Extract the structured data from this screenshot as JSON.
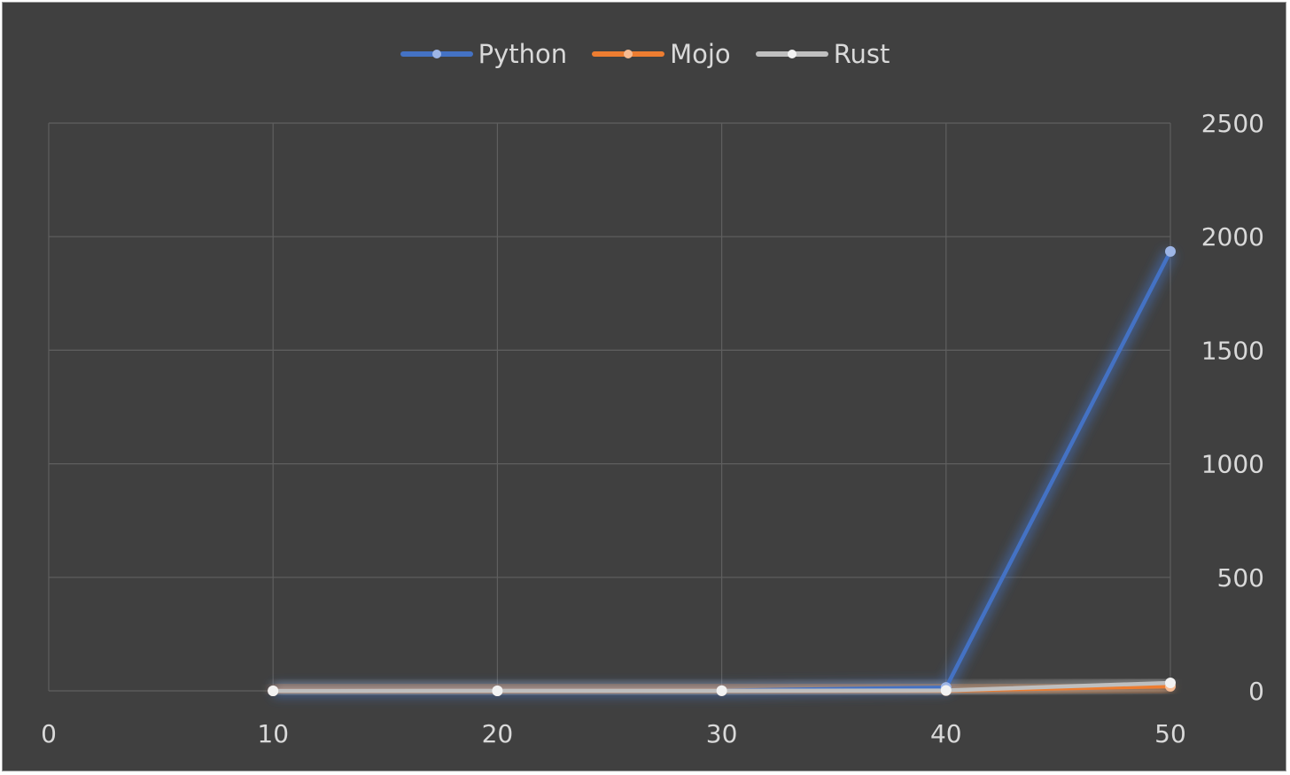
{
  "chart_data": {
    "type": "scatter",
    "mode": "lines+markers",
    "title": "",
    "xlabel": "",
    "ylabel": "",
    "x": [
      10,
      20,
      30,
      40,
      50
    ],
    "xlim": [
      0,
      50
    ],
    "ylim": [
      0,
      2500
    ],
    "xticks": [
      "0",
      "10",
      "20",
      "30",
      "40",
      "50"
    ],
    "yticks": [
      "0",
      "500",
      "1000",
      "1500",
      "2000",
      "2500"
    ],
    "y_axis_side": "right",
    "legend_position": "top-center",
    "grid": true,
    "series": [
      {
        "name": "Python",
        "color": "#4472C4",
        "values": [
          0.2,
          0.5,
          1.2,
          15,
          1935
        ]
      },
      {
        "name": "Mojo",
        "color": "#ED7D31",
        "values": [
          0.01,
          0.05,
          0.3,
          1,
          20
        ]
      },
      {
        "name": "Rust",
        "color": "#BFBFBF",
        "values": [
          0.05,
          0.2,
          0.5,
          2,
          35
        ]
      }
    ]
  }
}
